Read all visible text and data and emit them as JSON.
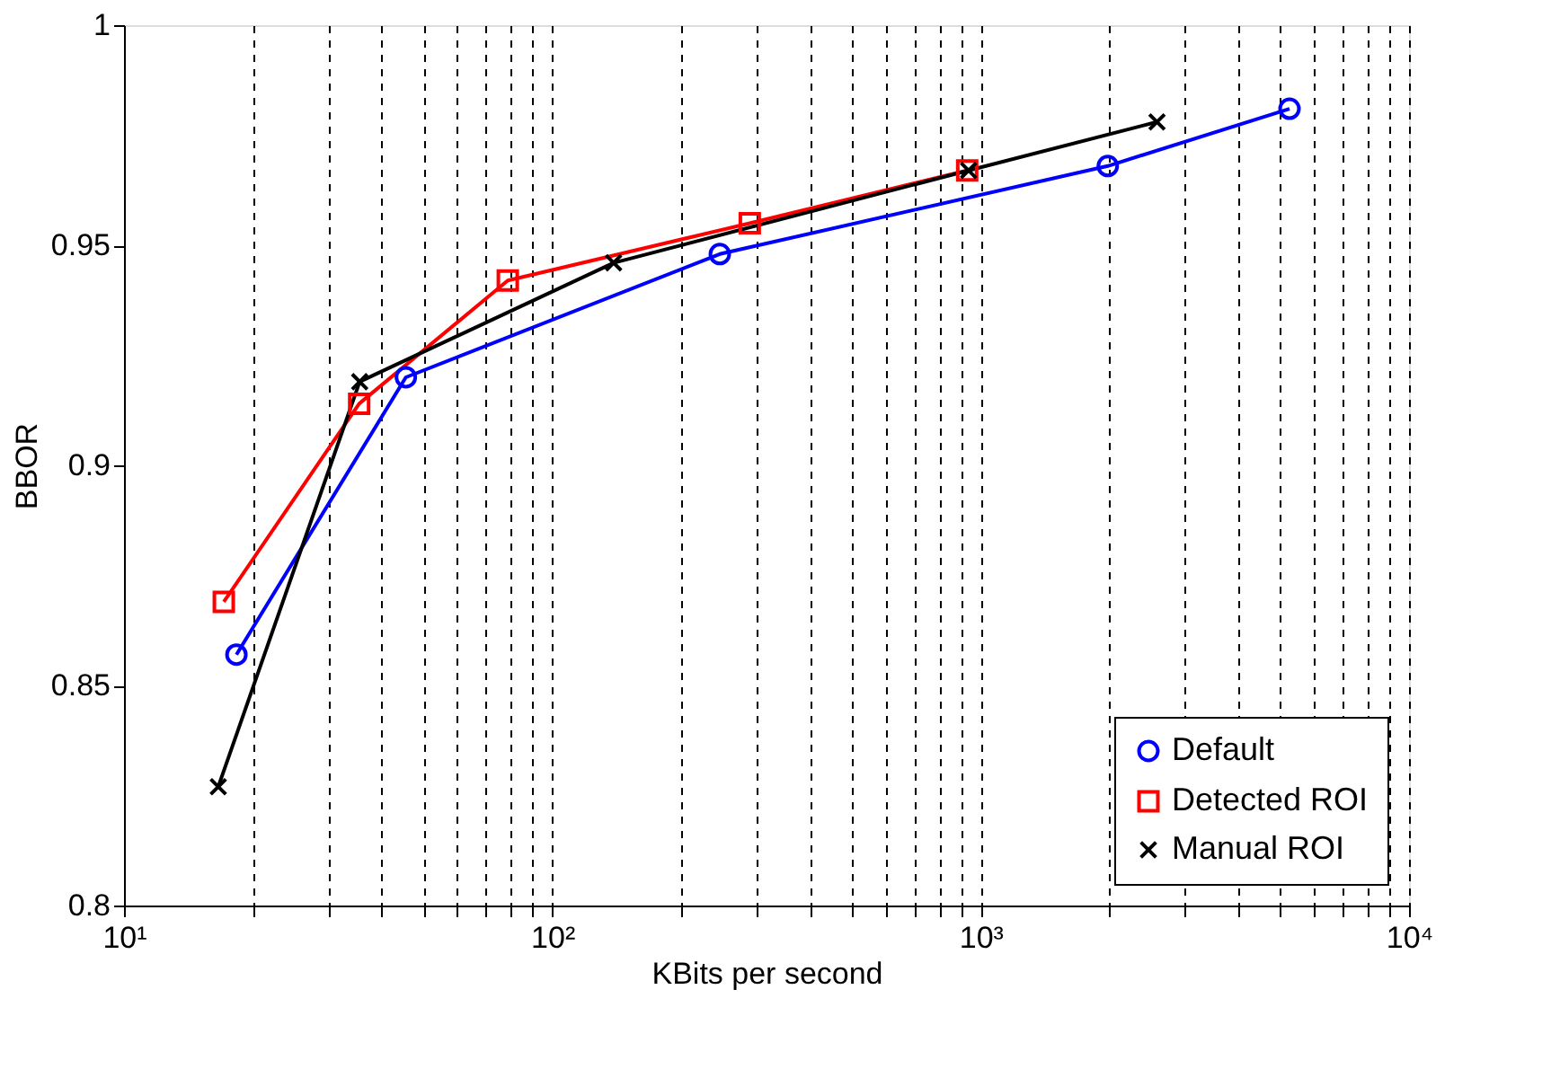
{
  "chart_data": {
    "type": "line",
    "xlabel": "KBits per second",
    "ylabel": "BBOR",
    "log": "x",
    "grid": "x",
    "legend": "bottom right",
    "line_style": "solid",
    "xlim": [
      10,
      10000
    ],
    "ylim": [
      0.8,
      1
    ],
    "xticks": [
      {
        "value": 10,
        "label": "10¹"
      },
      {
        "value": 20,
        "label": null
      },
      {
        "value": 30,
        "label": null
      },
      {
        "value": 40,
        "label": null
      },
      {
        "value": 50,
        "label": null
      },
      {
        "value": 60,
        "label": null
      },
      {
        "value": 70,
        "label": null
      },
      {
        "value": 80,
        "label": null
      },
      {
        "value": 90,
        "label": null
      },
      {
        "value": 100,
        "label": "10²"
      },
      {
        "value": 200,
        "label": null
      },
      {
        "value": 300,
        "label": null
      },
      {
        "value": 400,
        "label": null
      },
      {
        "value": 500,
        "label": null
      },
      {
        "value": 600,
        "label": null
      },
      {
        "value": 700,
        "label": null
      },
      {
        "value": 800,
        "label": null
      },
      {
        "value": 900,
        "label": null
      },
      {
        "value": 1000,
        "label": "10³"
      },
      {
        "value": 2000,
        "label": null
      },
      {
        "value": 3000,
        "label": null
      },
      {
        "value": 4000,
        "label": null
      },
      {
        "value": 5000,
        "label": null
      },
      {
        "value": 6000,
        "label": null
      },
      {
        "value": 7000,
        "label": null
      },
      {
        "value": 8000,
        "label": null
      },
      {
        "value": 9000,
        "label": null
      },
      {
        "value": 10000,
        "label": "10⁴"
      }
    ],
    "yticks": [
      0.8,
      0.85,
      0.9,
      0.95,
      1
    ],
    "series": [
      {
        "name": "Default",
        "color": "#0000ff",
        "marker": "circle",
        "x": [
          18.3,
          45.5,
          246,
          1980,
          5260
        ],
        "values": [
          0.857,
          0.92,
          0.948,
          0.968,
          0.981
        ]
      },
      {
        "name": "Detected ROI",
        "color": "#ff0000",
        "marker": "square",
        "x": [
          17.1,
          35.4,
          78.7,
          289,
          930
        ],
        "values": [
          0.869,
          0.914,
          0.942,
          0.955,
          0.967
        ]
      },
      {
        "name": "Manual ROI",
        "color": "#000000",
        "marker": "cross",
        "x": [
          16.6,
          35.5,
          139,
          937,
          2580
        ],
        "values": [
          0.827,
          0.919,
          0.946,
          0.967,
          0.978
        ]
      }
    ]
  }
}
